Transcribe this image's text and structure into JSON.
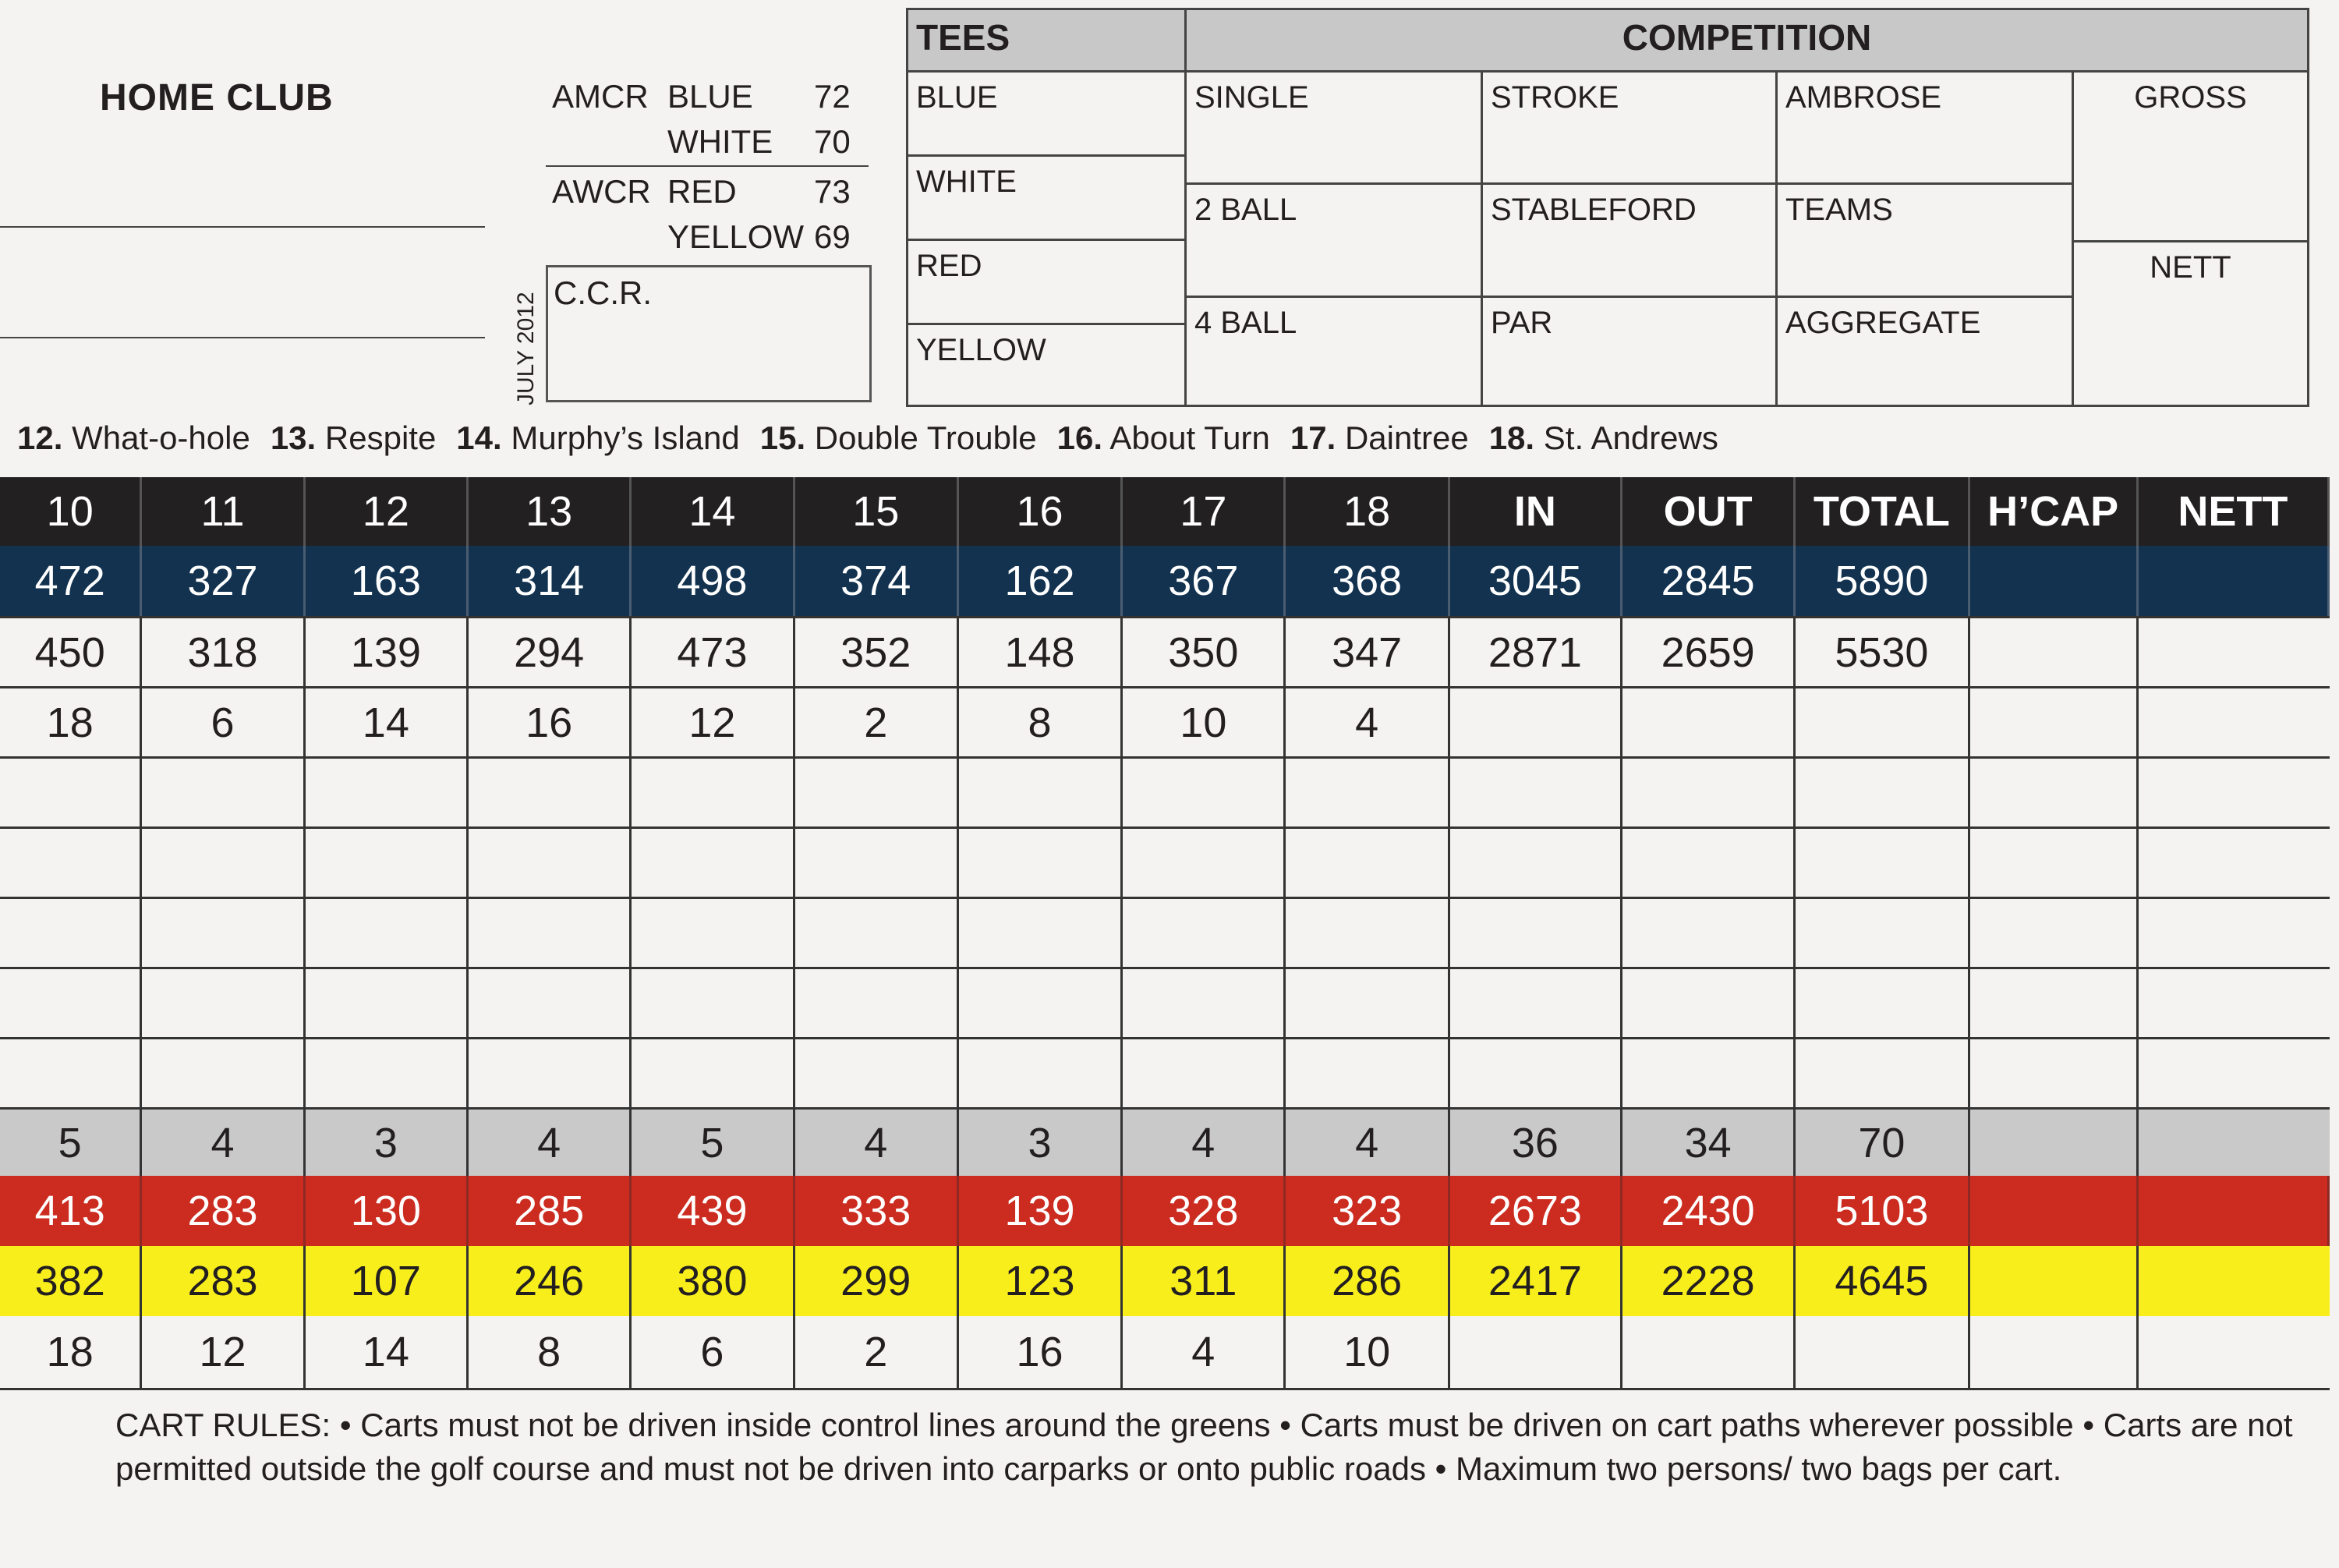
{
  "home_club": "HOME CLUB",
  "ratings": {
    "amcr_label": "AMCR",
    "awcr_label": "AWCR",
    "blue_label": "BLUE",
    "blue_value": "72",
    "white_label": "WHITE",
    "white_value": "70",
    "red_label": "RED",
    "red_value": "73",
    "yellow_label": "YELLOW",
    "yellow_value": "69",
    "ccr_label": "C.C.R.",
    "date": "JULY 2012"
  },
  "comp_table": {
    "tees_title": "TEES",
    "competition_title": "COMPETITION",
    "tees": [
      "BLUE",
      "WHITE",
      "RED",
      "YELLOW"
    ],
    "competitions": [
      "SINGLE",
      "STROKE",
      "AMBROSE",
      "2 BALL",
      "STABLEFORD",
      "TEAMS",
      "4 BALL",
      "PAR",
      "AGGREGATE"
    ],
    "gross": "GROSS",
    "nett": "NETT"
  },
  "hole_names": [
    {
      "num": "12.",
      "name": "What-o-hole"
    },
    {
      "num": "13.",
      "name": "Respite"
    },
    {
      "num": "14.",
      "name": "Murphy’s Island"
    },
    {
      "num": "15.",
      "name": "Double Trouble"
    },
    {
      "num": "16.",
      "name": "About Turn"
    },
    {
      "num": "17.",
      "name": "Daintree"
    },
    {
      "num": "18.",
      "name": "St. Andrews"
    }
  ],
  "scorecard": {
    "header": [
      "10",
      "11",
      "12",
      "13",
      "14",
      "15",
      "16",
      "17",
      "18",
      "IN",
      "OUT",
      "TOTAL",
      "H’CAP",
      "NETT"
    ],
    "blue": [
      "472",
      "327",
      "163",
      "314",
      "498",
      "374",
      "162",
      "367",
      "368",
      "3045",
      "2845",
      "5890",
      "",
      ""
    ],
    "white": [
      "450",
      "318",
      "139",
      "294",
      "473",
      "352",
      "148",
      "350",
      "347",
      "2871",
      "2659",
      "5530",
      "",
      ""
    ],
    "index_men": [
      "18",
      "6",
      "14",
      "16",
      "12",
      "2",
      "8",
      "10",
      "4",
      "",
      "",
      "",
      "",
      ""
    ],
    "par": [
      "5",
      "4",
      "3",
      "4",
      "5",
      "4",
      "3",
      "4",
      "4",
      "36",
      "34",
      "70",
      "",
      ""
    ],
    "red": [
      "413",
      "283",
      "130",
      "285",
      "439",
      "333",
      "139",
      "328",
      "323",
      "2673",
      "2430",
      "5103",
      "",
      ""
    ],
    "yellow": [
      "382",
      "283",
      "107",
      "246",
      "380",
      "299",
      "123",
      "311",
      "286",
      "2417",
      "2228",
      "4645",
      "",
      ""
    ],
    "index_women": [
      "18",
      "12",
      "14",
      "8",
      "6",
      "2",
      "16",
      "4",
      "10",
      "",
      "",
      "",
      "",
      ""
    ]
  },
  "cart_rules": "CART RULES: • Carts must not be driven inside control lines around the greens  • Carts must be driven on cart paths wherever possible • Carts are not permitted outside the golf course and must not be driven into carparks or onto public roads  • Maximum two persons/ two bags per cart.",
  "colors": {
    "blue_tee": "#12324f",
    "red_tee": "#cc2c20",
    "yellow_tee": "#f8ee1c",
    "header": "#222021",
    "par_row": "#c9c9c9"
  }
}
